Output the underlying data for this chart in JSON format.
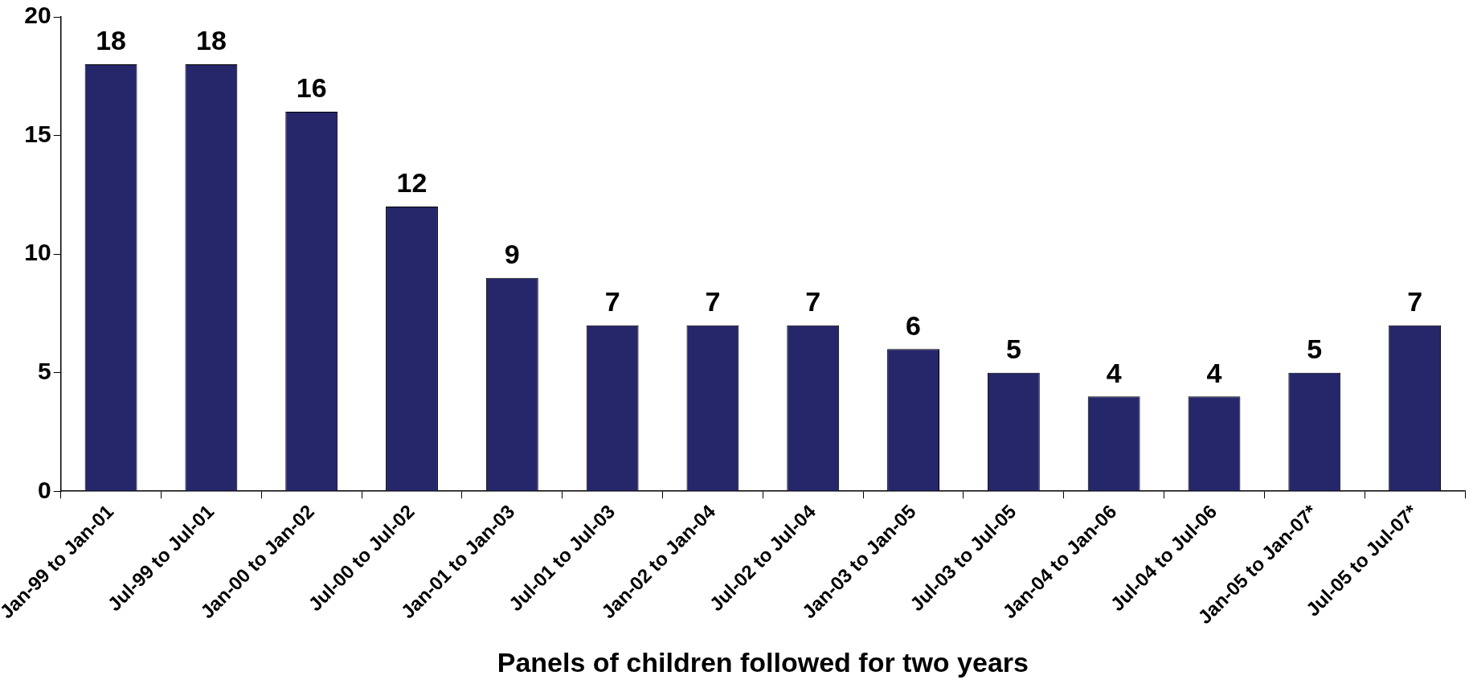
{
  "chart_data": {
    "type": "bar",
    "xlabel": "Panels of children followed for two years",
    "categories": [
      "Jan-99 to Jan-01",
      "Jul-99 to Jul-01",
      "Jan-00 to Jan-02",
      "Jul-00 to Jul-02",
      "Jan-01 to Jan-03",
      "Jul-01 to Jul-03",
      "Jan-02 to Jan-04",
      "Jul-02 to Jul-04",
      "Jan-03 to Jan-05",
      "Jul-03 to Jul-05",
      "Jan-04 to Jan-06",
      "Jul-04 to Jul-06",
      "Jan-05 to Jan-07*",
      "Jul-05 to Jul-07*"
    ],
    "values": [
      18,
      18,
      16,
      12,
      9,
      7,
      7,
      7,
      6,
      5,
      4,
      4,
      5,
      7
    ],
    "color": "#26266b",
    "ylim": [
      0,
      20
    ],
    "yticks": [
      0,
      5,
      10,
      15,
      20
    ],
    "data_labels": true,
    "grid": false,
    "legend": false
  }
}
